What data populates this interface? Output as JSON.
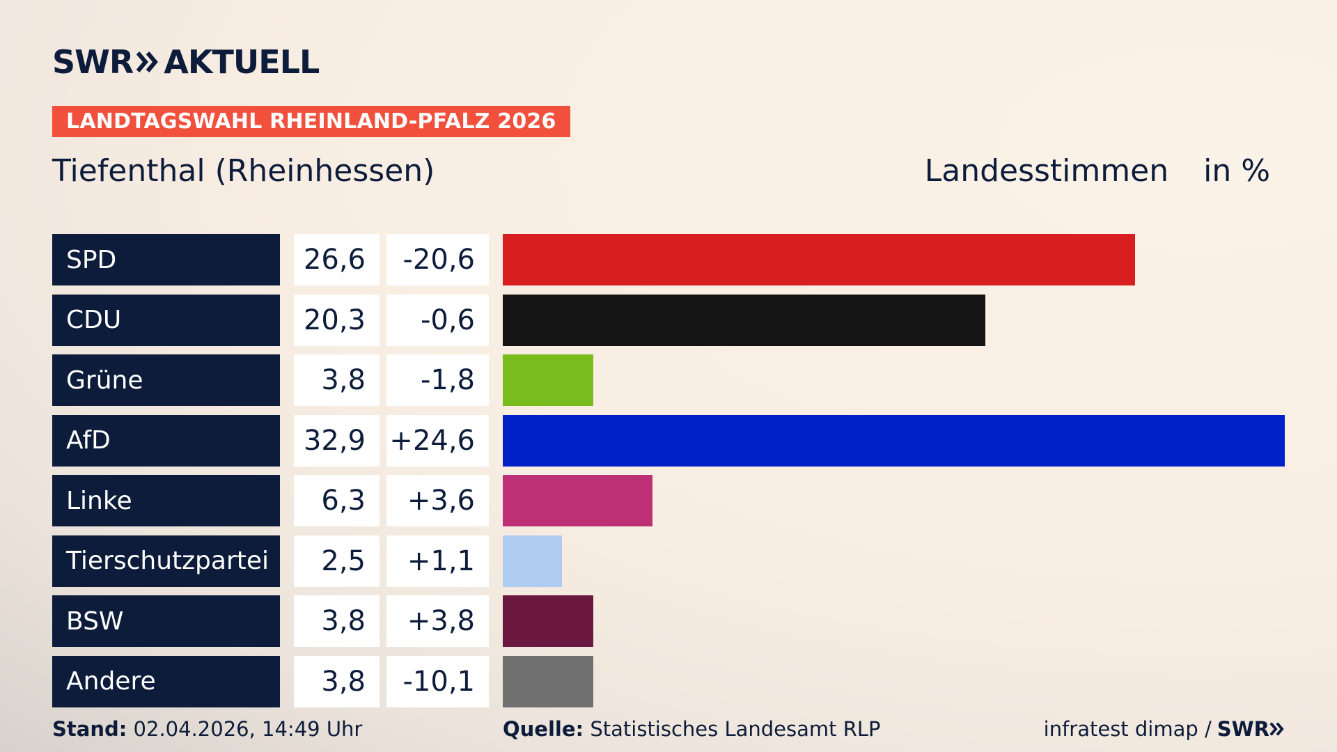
{
  "header": {
    "brand_left": "SWR",
    "brand_right": "AKTUELL",
    "banner": "LANDTAGSWAHL RHEINLAND-PFALZ 2026",
    "subtitle": "Tiefenthal (Rheinhessen)",
    "measure": "Landesstimmen",
    "unit": "in %"
  },
  "chart_data": {
    "type": "bar",
    "orientation": "horizontal",
    "xlim": [
      0,
      32.9
    ],
    "categories": [
      "SPD",
      "CDU",
      "Grüne",
      "AfD",
      "Linke",
      "Tierschutzpartei",
      "BSW",
      "Andere"
    ],
    "values": [
      26.6,
      20.3,
      3.8,
      32.9,
      6.3,
      2.5,
      3.8,
      3.8
    ],
    "value_labels": [
      "26,6",
      "20,3",
      "3,8",
      "32,9",
      "6,3",
      "2,5",
      "3,8",
      "3,8"
    ],
    "diff_labels": [
      "-20,6",
      "-0,6",
      "-1,8",
      "+24,6",
      "+3,6",
      "+1,1",
      "+3,8",
      "-10,1"
    ],
    "colors": [
      "#d81e1e",
      "#141414",
      "#78bc1e",
      "#0021c8",
      "#be3076",
      "#aecbf0",
      "#6a1840",
      "#707070"
    ]
  },
  "footer": {
    "stand_label": "Stand:",
    "stand_value": "02.04.2026, 14:49 Uhr",
    "source_label": "Quelle:",
    "source_value": "Statistisches Landesamt RLP",
    "credit": "infratest dimap /",
    "credit_brand": "SWR"
  }
}
